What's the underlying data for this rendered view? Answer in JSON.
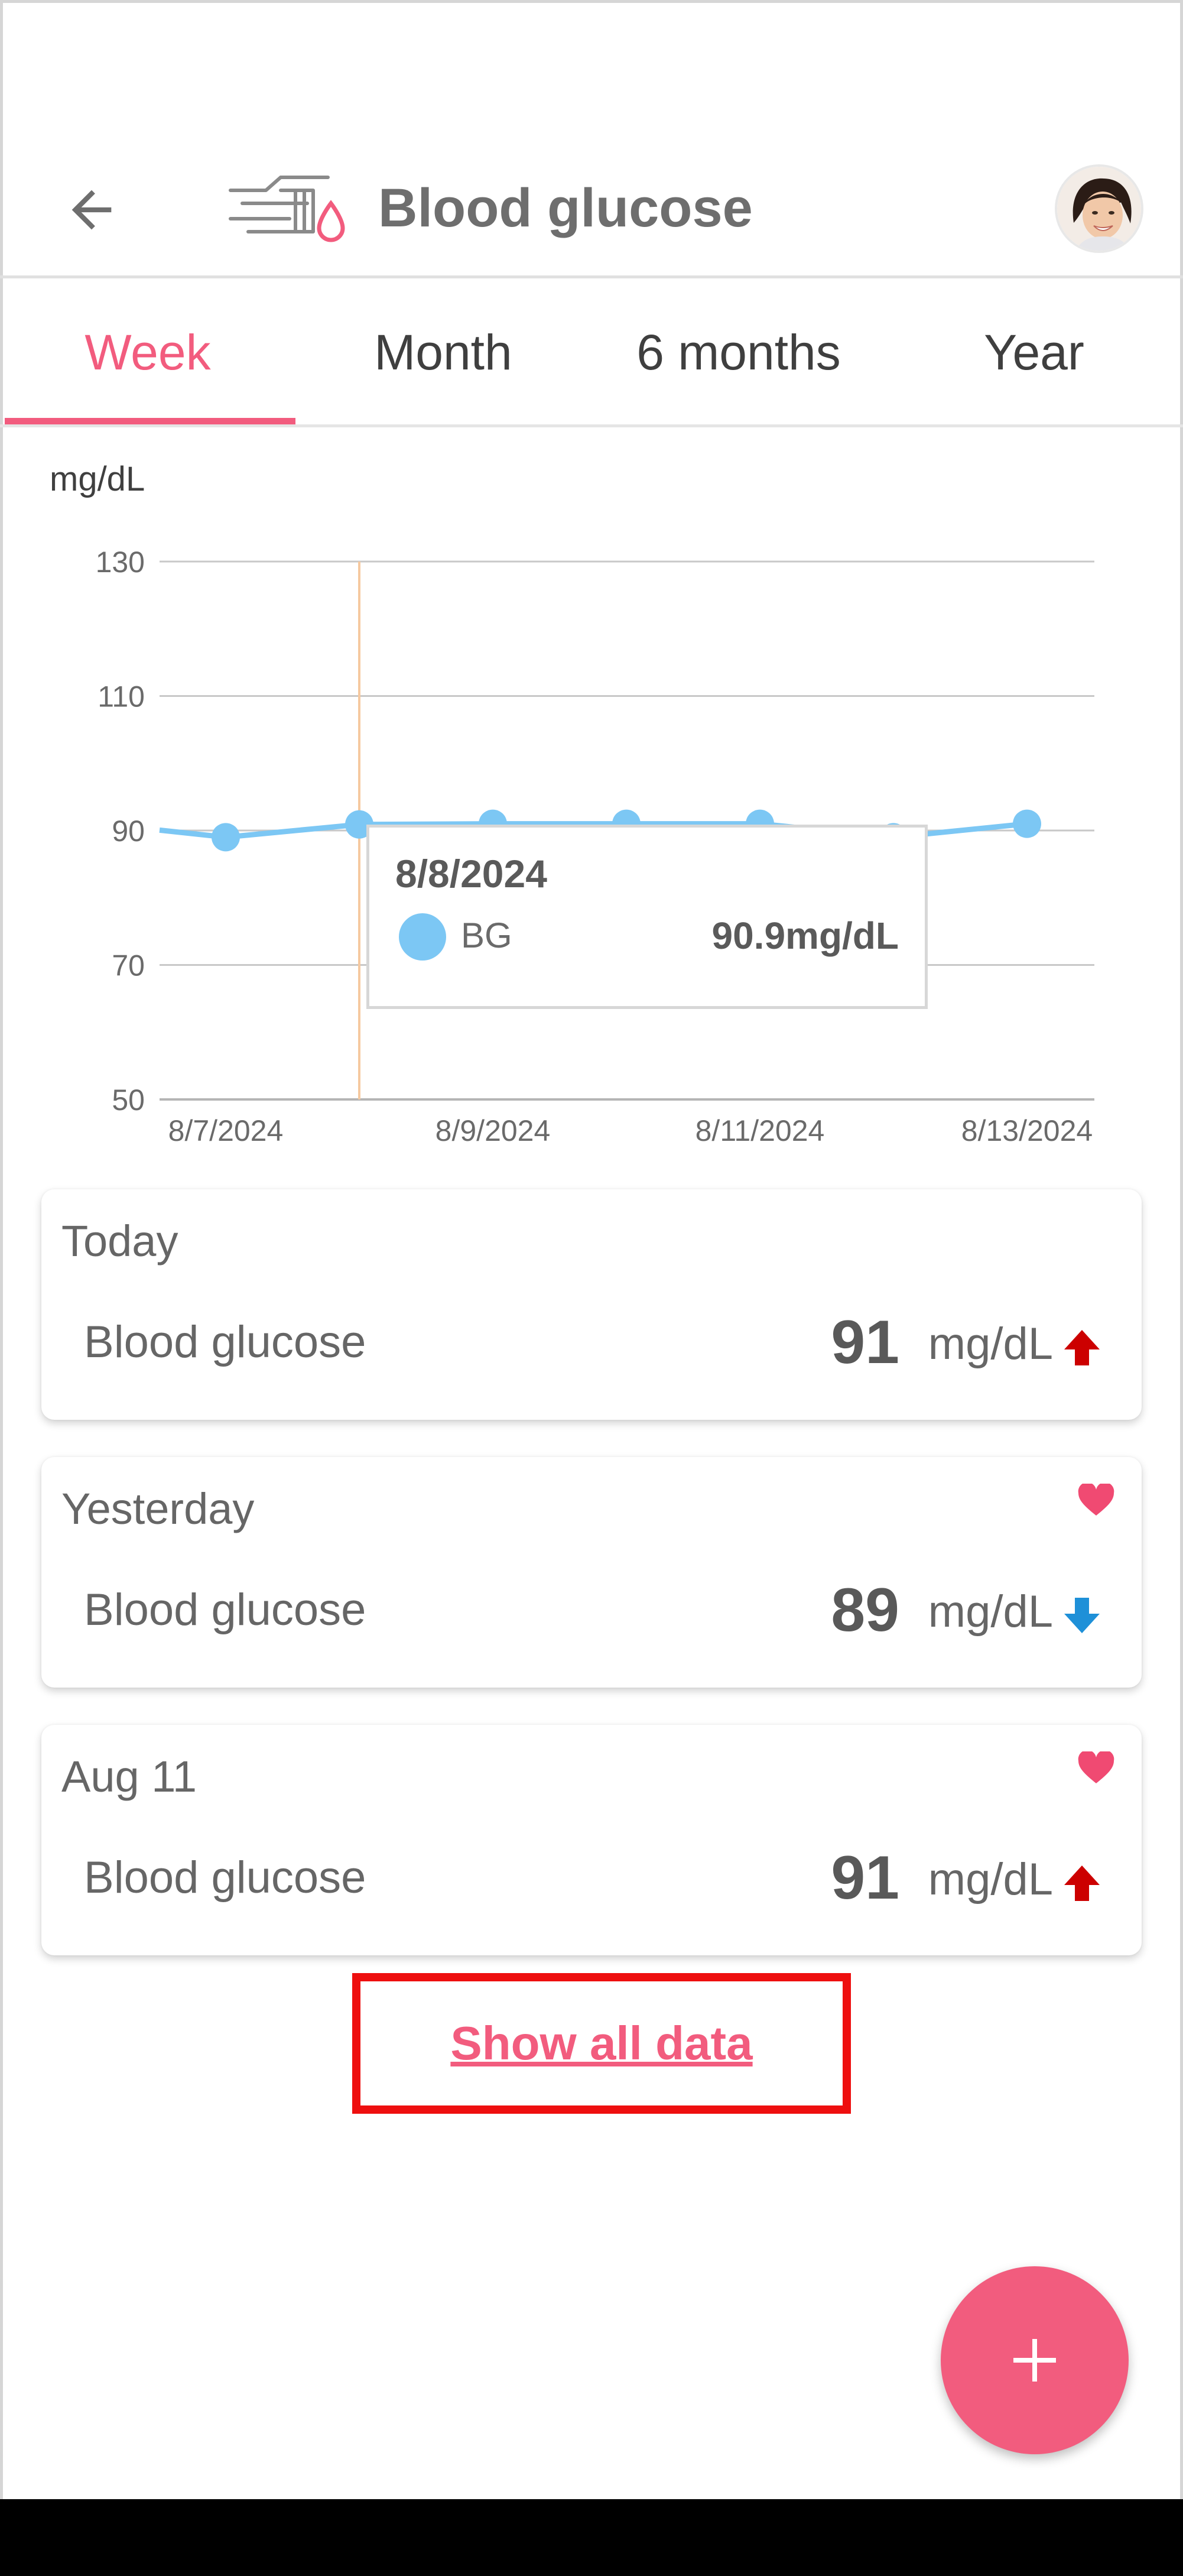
{
  "header": {
    "title": "Blood glucose",
    "back_icon": "arrow-left-icon",
    "app_icon": "glucose-meter-icon",
    "avatar": "user-avatar"
  },
  "tabs": [
    {
      "label": "Week",
      "active": true
    },
    {
      "label": "Month",
      "active": false
    },
    {
      "label": "6 months",
      "active": false
    },
    {
      "label": "Year",
      "active": false
    }
  ],
  "chart_data": {
    "type": "line",
    "ylabel": "mg/dL",
    "ylim": [
      50,
      130
    ],
    "yticks": [
      130,
      110,
      90,
      70,
      50
    ],
    "xticks": [
      "8/7/2024",
      "8/9/2024",
      "8/11/2024",
      "8/13/2024"
    ],
    "series": [
      {
        "name": "BG",
        "color": "#7cc7f4",
        "points": [
          {
            "x": "8/7/2024",
            "y": 89
          },
          {
            "x": "8/8/2024",
            "y": 90.9
          },
          {
            "x": "8/9/2024",
            "y": 91
          },
          {
            "x": "8/10/2024",
            "y": 91
          },
          {
            "x": "8/11/2024",
            "y": 91
          },
          {
            "x": "8/12/2024",
            "y": 89
          },
          {
            "x": "8/13/2024",
            "y": 91
          }
        ]
      }
    ],
    "tooltip": {
      "date": "8/8/2024",
      "series": "BG",
      "value": "90.9mg/dL"
    },
    "grid": true,
    "cursor_color": "#f6c9a0",
    "axis_color": "#b5b5b5"
  },
  "cards": [
    {
      "title": "Today",
      "label": "Blood glucose",
      "value": "91",
      "unit": "mg/dL",
      "trend": "up",
      "favorite": false
    },
    {
      "title": "Yesterday",
      "label": "Blood glucose",
      "value": "89",
      "unit": "mg/dL",
      "trend": "down",
      "favorite": true
    },
    {
      "title": "Aug 11",
      "label": "Blood glucose",
      "value": "91",
      "unit": "mg/dL",
      "trend": "up",
      "favorite": true
    }
  ],
  "show_all": {
    "label": "Show all data"
  },
  "fab": {
    "icon": "plus-icon"
  },
  "colors": {
    "accent": "#f25c7e",
    "trend_up": "#cc0000",
    "trend_down": "#1e90d8",
    "heart": "#f04a72",
    "highlight_box": "#ee0f0f"
  }
}
